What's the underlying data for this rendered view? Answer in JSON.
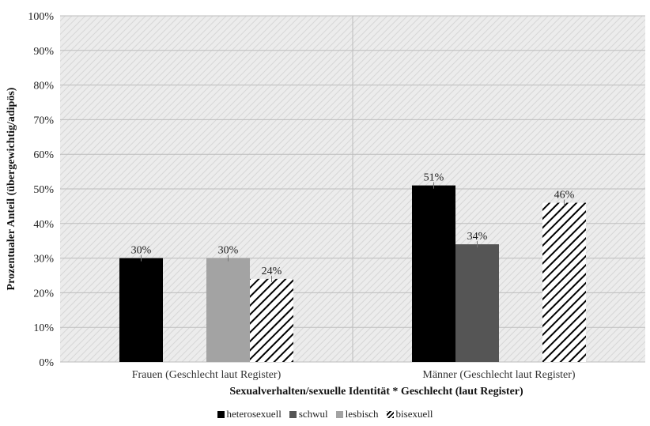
{
  "chart_data": {
    "type": "bar",
    "categories": [
      "Frauen (Geschlecht laut Register)",
      "Männer (Geschlecht laut Register)"
    ],
    "series": [
      {
        "name": "heterosexuell",
        "values": [
          30,
          51
        ],
        "labels": [
          "30%",
          "51%"
        ],
        "color": "#000000",
        "pattern": "solid"
      },
      {
        "name": "schwul",
        "values": [
          null,
          34
        ],
        "labels": [
          "",
          "34%"
        ],
        "color": "#555555",
        "pattern": "solid"
      },
      {
        "name": "lesbisch",
        "values": [
          30,
          null
        ],
        "labels": [
          "30%",
          ""
        ],
        "color": "#a3a3a3",
        "pattern": "solid"
      },
      {
        "name": "bisexuell",
        "values": [
          24,
          46
        ],
        "labels": [
          "24%",
          "46%"
        ],
        "color": "#000000",
        "pattern": "diagonal-hatch"
      }
    ],
    "xlabel": "Sexualverhalten/sexuelle Identität * Geschlecht (laut Register)",
    "ylabel": "Prozentualer Anteil (übergewichtig/adipös)",
    "ylim": [
      0,
      100
    ],
    "yticks": [
      "0%",
      "10%",
      "20%",
      "30%",
      "40%",
      "50%",
      "60%",
      "70%",
      "80%",
      "90%",
      "100%"
    ],
    "grid": true,
    "legend_position": "bottom",
    "plot_background": "light diagonal hatch"
  }
}
